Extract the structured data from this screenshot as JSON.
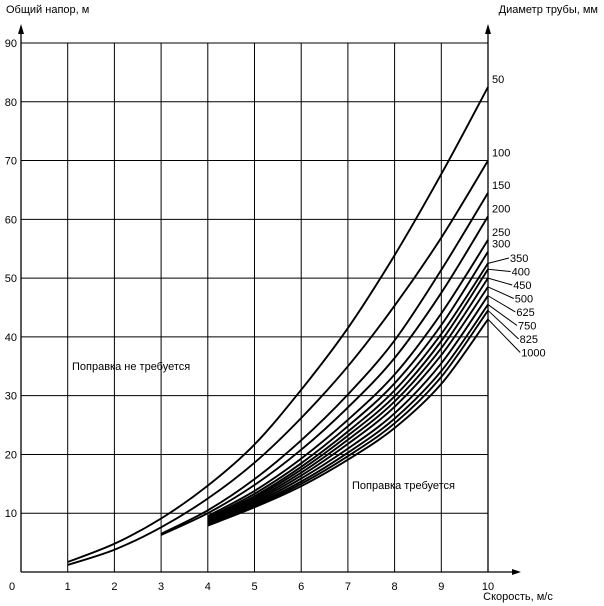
{
  "chart_data": {
    "type": "line",
    "ylabel": "Общий напор, м",
    "xlabel": "Скорость, м/с",
    "legend_title": "Диаметр трубы, мм",
    "xlim": [
      0,
      10
    ],
    "ylim": [
      0,
      90
    ],
    "x_ticks": [
      "0",
      "1",
      "2",
      "3",
      "4",
      "5",
      "6",
      "7",
      "8",
      "9",
      "10"
    ],
    "y_ticks": [
      "10",
      "20",
      "30",
      "40",
      "50",
      "60",
      "70",
      "80",
      "90"
    ],
    "grid": true,
    "annotations": [
      "Поправка не требуется",
      "Поправка требуется"
    ],
    "series": [
      {
        "name": "50",
        "x": [
          1,
          2,
          3,
          4,
          5,
          6,
          7,
          8,
          9,
          10
        ],
        "y": [
          1.7,
          4.8,
          9.1,
          14.7,
          21.7,
          31.0,
          41.5,
          53.9,
          67.7,
          82.5
        ]
      },
      {
        "name": "100",
        "x": [
          1,
          2,
          3,
          4,
          5,
          6,
          7,
          8,
          9,
          10
        ],
        "y": [
          1.2,
          3.8,
          7.6,
          12.5,
          18.6,
          26.2,
          35.0,
          45.3,
          56.9,
          70.0
        ]
      },
      {
        "name": "150",
        "x": [
          3,
          4,
          5,
          6,
          7,
          8,
          9,
          10
        ],
        "y": [
          6.5,
          10.5,
          15.8,
          22.4,
          30.2,
          39.4,
          51.4,
          64.5
        ]
      },
      {
        "name": "200",
        "x": [
          3,
          4,
          5,
          6,
          7,
          8,
          9,
          10
        ],
        "y": [
          6.3,
          10.0,
          14.8,
          20.8,
          28.0,
          36.4,
          47.5,
          60.5
        ]
      },
      {
        "name": "250",
        "x": [
          4,
          5,
          6,
          7,
          8,
          9,
          10
        ],
        "y": [
          9.5,
          13.8,
          19.3,
          25.9,
          33.6,
          44.0,
          56.5
        ]
      },
      {
        "name": "300",
        "x": [
          4,
          5,
          6,
          7,
          8,
          9,
          10
        ],
        "y": [
          9.2,
          13.3,
          18.5,
          24.8,
          32.1,
          42.0,
          54.5
        ]
      },
      {
        "name": "350",
        "x": [
          4,
          5,
          6,
          7,
          8,
          9,
          10
        ],
        "y": [
          9.0,
          12.9,
          17.9,
          23.9,
          30.9,
          40.5,
          52.5
        ]
      },
      {
        "name": "400",
        "x": [
          4,
          5,
          6,
          7,
          8,
          9,
          10
        ],
        "y": [
          8.8,
          12.6,
          17.4,
          23.2,
          29.9,
          39.3,
          51.5
        ]
      },
      {
        "name": "450",
        "x": [
          4,
          5,
          6,
          7,
          8,
          9,
          10
        ],
        "y": [
          8.6,
          12.3,
          16.9,
          22.5,
          29.0,
          38.1,
          50.0
        ]
      },
      {
        "name": "500",
        "x": [
          4,
          5,
          6,
          7,
          8,
          9,
          10
        ],
        "y": [
          8.5,
          12.0,
          16.4,
          21.8,
          28.1,
          36.9,
          48.5
        ]
      },
      {
        "name": "625",
        "x": [
          4,
          5,
          6,
          7,
          8,
          9,
          10
        ],
        "y": [
          8.3,
          11.7,
          15.9,
          21.0,
          27.0,
          35.5,
          47.0
        ]
      },
      {
        "name": "750",
        "x": [
          4,
          5,
          6,
          7,
          8,
          9,
          10
        ],
        "y": [
          8.1,
          11.4,
          15.4,
          20.3,
          26.1,
          34.2,
          45.5
        ]
      },
      {
        "name": "825",
        "x": [
          4,
          5,
          6,
          7,
          8,
          9,
          10
        ],
        "y": [
          8.0,
          11.2,
          15.0,
          19.7,
          25.3,
          33.2,
          44.5
        ]
      },
      {
        "name": "1000",
        "x": [
          4,
          5,
          6,
          7,
          8,
          9,
          10
        ],
        "y": [
          7.9,
          11.0,
          14.6,
          19.1,
          24.5,
          32.0,
          43.0
        ]
      }
    ]
  }
}
